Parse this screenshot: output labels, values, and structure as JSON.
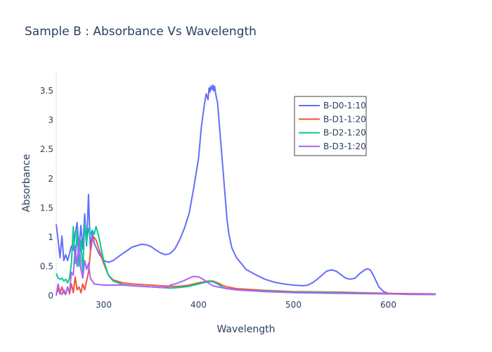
{
  "chart_data": {
    "type": "line",
    "title": "Sample B : Absorbance Vs Wavelength",
    "xlabel": "Wavelength",
    "ylabel": "Absorbance",
    "xlim": [
      250,
      650
    ],
    "ylim": [
      0,
      3.85
    ],
    "x_ticks": [
      300,
      400,
      500,
      600
    ],
    "y_ticks": [
      0,
      0.5,
      1,
      1.5,
      2,
      2.5,
      3,
      3.5
    ],
    "y_tick_labels": [
      "0",
      "0.5",
      "1",
      "1.5",
      "2",
      "2.5",
      "3",
      "3.5"
    ],
    "grid": false,
    "legend_position": "top-right",
    "series": [
      {
        "name": "B-D0-1:10",
        "color": "#636efa",
        "points": [
          [
            250,
            1.22
          ],
          [
            252,
            0.95
          ],
          [
            254,
            0.65
          ],
          [
            256,
            1.02
          ],
          [
            258,
            0.6
          ],
          [
            260,
            0.7
          ],
          [
            262,
            0.6
          ],
          [
            264,
            0.72
          ],
          [
            266,
            0.85
          ],
          [
            268,
            0.78
          ],
          [
            270,
            1.05
          ],
          [
            272,
            1.25
          ],
          [
            274,
            0.8
          ],
          [
            276,
            1.2
          ],
          [
            278,
            0.8
          ],
          [
            280,
            1.4
          ],
          [
            282,
            0.85
          ],
          [
            284,
            1.73
          ],
          [
            286,
            0.78
          ],
          [
            288,
            1.08
          ],
          [
            290,
            0.9
          ],
          [
            295,
            0.72
          ],
          [
            300,
            0.6
          ],
          [
            305,
            0.57
          ],
          [
            310,
            0.6
          ],
          [
            320,
            0.72
          ],
          [
            330,
            0.83
          ],
          [
            340,
            0.88
          ],
          [
            345,
            0.87
          ],
          [
            350,
            0.84
          ],
          [
            355,
            0.78
          ],
          [
            360,
            0.73
          ],
          [
            365,
            0.7
          ],
          [
            370,
            0.72
          ],
          [
            375,
            0.8
          ],
          [
            380,
            0.95
          ],
          [
            385,
            1.15
          ],
          [
            390,
            1.4
          ],
          [
            395,
            1.85
          ],
          [
            400,
            2.35
          ],
          [
            403,
            2.9
          ],
          [
            406,
            3.25
          ],
          [
            408,
            3.45
          ],
          [
            410,
            3.35
          ],
          [
            411,
            3.55
          ],
          [
            412,
            3.48
          ],
          [
            413,
            3.58
          ],
          [
            414,
            3.52
          ],
          [
            415,
            3.6
          ],
          [
            416,
            3.5
          ],
          [
            417,
            3.58
          ],
          [
            418,
            3.45
          ],
          [
            420,
            3.3
          ],
          [
            422,
            2.9
          ],
          [
            425,
            2.3
          ],
          [
            428,
            1.7
          ],
          [
            430,
            1.3
          ],
          [
            432,
            1.05
          ],
          [
            435,
            0.82
          ],
          [
            440,
            0.65
          ],
          [
            445,
            0.55
          ],
          [
            450,
            0.45
          ],
          [
            460,
            0.36
          ],
          [
            470,
            0.28
          ],
          [
            480,
            0.23
          ],
          [
            490,
            0.2
          ],
          [
            500,
            0.18
          ],
          [
            510,
            0.17
          ],
          [
            515,
            0.18
          ],
          [
            520,
            0.22
          ],
          [
            525,
            0.28
          ],
          [
            530,
            0.35
          ],
          [
            535,
            0.42
          ],
          [
            540,
            0.44
          ],
          [
            545,
            0.42
          ],
          [
            550,
            0.36
          ],
          [
            555,
            0.3
          ],
          [
            560,
            0.28
          ],
          [
            565,
            0.3
          ],
          [
            570,
            0.38
          ],
          [
            575,
            0.44
          ],
          [
            578,
            0.46
          ],
          [
            581,
            0.44
          ],
          [
            585,
            0.32
          ],
          [
            590,
            0.15
          ],
          [
            595,
            0.07
          ],
          [
            600,
            0.04
          ],
          [
            610,
            0.03
          ],
          [
            620,
            0.02
          ],
          [
            650,
            0.02
          ]
        ]
      },
      {
        "name": "B-D1-1:20",
        "color": "#ef553b",
        "points": [
          [
            250,
            0.02
          ],
          [
            252,
            0.12
          ],
          [
            254,
            0.03
          ],
          [
            256,
            0.15
          ],
          [
            258,
            0.05
          ],
          [
            260,
            0.02
          ],
          [
            262,
            0.15
          ],
          [
            264,
            0.03
          ],
          [
            266,
            0.2
          ],
          [
            268,
            0.05
          ],
          [
            270,
            0.32
          ],
          [
            272,
            0.1
          ],
          [
            274,
            0.15
          ],
          [
            276,
            0.05
          ],
          [
            278,
            0.2
          ],
          [
            280,
            0.1
          ],
          [
            282,
            0.25
          ],
          [
            284,
            0.4
          ],
          [
            286,
            0.75
          ],
          [
            288,
            0.95
          ],
          [
            290,
            1.0
          ],
          [
            292,
            0.95
          ],
          [
            295,
            0.8
          ],
          [
            300,
            0.55
          ],
          [
            305,
            0.35
          ],
          [
            310,
            0.27
          ],
          [
            320,
            0.22
          ],
          [
            330,
            0.2
          ],
          [
            340,
            0.19
          ],
          [
            350,
            0.18
          ],
          [
            360,
            0.17
          ],
          [
            370,
            0.16
          ],
          [
            380,
            0.16
          ],
          [
            390,
            0.18
          ],
          [
            400,
            0.22
          ],
          [
            410,
            0.25
          ],
          [
            415,
            0.25
          ],
          [
            420,
            0.22
          ],
          [
            425,
            0.18
          ],
          [
            430,
            0.15
          ],
          [
            440,
            0.12
          ],
          [
            450,
            0.11
          ],
          [
            470,
            0.09
          ],
          [
            500,
            0.07
          ],
          [
            550,
            0.06
          ],
          [
            600,
            0.04
          ],
          [
            650,
            0.03
          ]
        ]
      },
      {
        "name": "B-D2-1:20",
        "color": "#00cc96",
        "points": [
          [
            250,
            0.38
          ],
          [
            252,
            0.3
          ],
          [
            254,
            0.28
          ],
          [
            256,
            0.3
          ],
          [
            258,
            0.25
          ],
          [
            260,
            0.28
          ],
          [
            262,
            0.22
          ],
          [
            264,
            0.3
          ],
          [
            266,
            0.55
          ],
          [
            268,
            1.18
          ],
          [
            270,
            0.55
          ],
          [
            272,
            1.1
          ],
          [
            274,
            0.5
          ],
          [
            276,
            0.95
          ],
          [
            278,
            0.4
          ],
          [
            280,
            1.25
          ],
          [
            282,
            0.9
          ],
          [
            284,
            1.15
          ],
          [
            286,
            1.05
          ],
          [
            288,
            1.12
          ],
          [
            290,
            1.05
          ],
          [
            292,
            1.18
          ],
          [
            295,
            1.0
          ],
          [
            300,
            0.6
          ],
          [
            305,
            0.35
          ],
          [
            310,
            0.25
          ],
          [
            320,
            0.19
          ],
          [
            330,
            0.17
          ],
          [
            340,
            0.16
          ],
          [
            350,
            0.15
          ],
          [
            360,
            0.14
          ],
          [
            370,
            0.13
          ],
          [
            380,
            0.14
          ],
          [
            390,
            0.16
          ],
          [
            400,
            0.2
          ],
          [
            410,
            0.24
          ],
          [
            415,
            0.24
          ],
          [
            420,
            0.2
          ],
          [
            425,
            0.15
          ],
          [
            430,
            0.12
          ],
          [
            440,
            0.1
          ],
          [
            450,
            0.09
          ],
          [
            470,
            0.08
          ],
          [
            500,
            0.06
          ],
          [
            550,
            0.05
          ],
          [
            600,
            0.03
          ],
          [
            650,
            0.02
          ]
        ]
      },
      {
        "name": "B-D3-1:20",
        "color": "#ab63fa",
        "points": [
          [
            250,
            0.0
          ],
          [
            252,
            0.2
          ],
          [
            254,
            0.05
          ],
          [
            256,
            0.02
          ],
          [
            258,
            0.1
          ],
          [
            260,
            0.03
          ],
          [
            262,
            0.15
          ],
          [
            264,
            0.05
          ],
          [
            266,
            0.4
          ],
          [
            268,
            0.35
          ],
          [
            270,
            0.85
          ],
          [
            272,
            0.5
          ],
          [
            274,
            0.95
          ],
          [
            276,
            0.45
          ],
          [
            278,
            0.3
          ],
          [
            280,
            0.6
          ],
          [
            282,
            0.45
          ],
          [
            284,
            0.55
          ],
          [
            286,
            0.3
          ],
          [
            288,
            0.25
          ],
          [
            290,
            0.2
          ],
          [
            295,
            0.19
          ],
          [
            300,
            0.18
          ],
          [
            310,
            0.18
          ],
          [
            320,
            0.18
          ],
          [
            330,
            0.17
          ],
          [
            340,
            0.16
          ],
          [
            350,
            0.15
          ],
          [
            360,
            0.14
          ],
          [
            368,
            0.14
          ],
          [
            370,
            0.18
          ],
          [
            375,
            0.2
          ],
          [
            380,
            0.23
          ],
          [
            385,
            0.26
          ],
          [
            390,
            0.3
          ],
          [
            395,
            0.33
          ],
          [
            400,
            0.32
          ],
          [
            405,
            0.28
          ],
          [
            410,
            0.22
          ],
          [
            415,
            0.17
          ],
          [
            420,
            0.15
          ],
          [
            430,
            0.12
          ],
          [
            440,
            0.1
          ],
          [
            450,
            0.09
          ],
          [
            470,
            0.07
          ],
          [
            500,
            0.05
          ],
          [
            550,
            0.04
          ],
          [
            600,
            0.03
          ],
          [
            650,
            0.02
          ]
        ]
      }
    ]
  }
}
